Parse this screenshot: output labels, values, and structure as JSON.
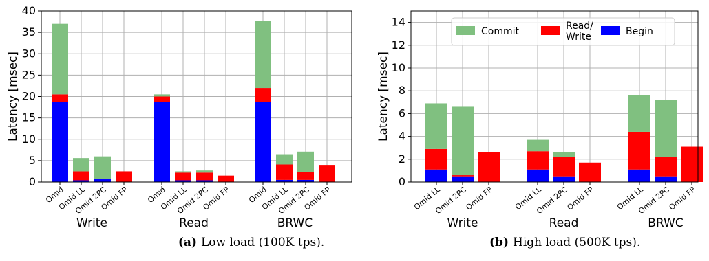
{
  "colors": {
    "begin": "#0000ff",
    "read_write": "#ff0000",
    "commit": "#80c080"
  },
  "legend": {
    "commit": "Commit",
    "read_write_line1": "Read/",
    "read_write_line2": "Write",
    "begin": "Begin"
  },
  "captions": {
    "a_label": "(a)",
    "a_text": "Low load (100K tps).",
    "b_label": "(b)",
    "b_text": "High load (500K tps)."
  },
  "chart_data": [
    {
      "type": "bar",
      "stacked": true,
      "ylabel": "Latency [msec]",
      "ylim": [
        0,
        40
      ],
      "yticks": [
        0,
        5,
        10,
        15,
        20,
        25,
        30,
        35,
        40
      ],
      "grid": true,
      "groups": [
        {
          "label": "Write",
          "bars": [
            {
              "label": "Omid",
              "begin": 18.7,
              "read_write": 1.8,
              "commit": 16.5
            },
            {
              "label": "Omid LL",
              "begin": 0.4,
              "read_write": 2.1,
              "commit": 3.1
            },
            {
              "label": "Omid 2PC",
              "begin": 0.7,
              "read_write": 0.1,
              "commit": 5.2
            },
            {
              "label": "Omid FP",
              "begin": 0,
              "read_write": 2.5,
              "commit": 0
            }
          ]
        },
        {
          "label": "Read",
          "bars": [
            {
              "label": "Omid",
              "begin": 18.7,
              "read_write": 1.3,
              "commit": 0.5
            },
            {
              "label": "Omid LL",
              "begin": 0.4,
              "read_write": 1.8,
              "commit": 0.3
            },
            {
              "label": "Omid 2PC",
              "begin": 0.4,
              "read_write": 1.8,
              "commit": 0.5
            },
            {
              "label": "Omid FP",
              "begin": 0,
              "read_write": 1.5,
              "commit": 0
            }
          ]
        },
        {
          "label": "BRWC",
          "bars": [
            {
              "label": "Omid",
              "begin": 18.7,
              "read_write": 3.3,
              "commit": 15.7
            },
            {
              "label": "Omid LL",
              "begin": 0.5,
              "read_write": 3.6,
              "commit": 2.4
            },
            {
              "label": "Omid 2PC",
              "begin": 0.5,
              "read_write": 1.9,
              "commit": 4.7
            },
            {
              "label": "Omid FP",
              "begin": 0,
              "read_write": 4.0,
              "commit": 0
            }
          ]
        }
      ]
    },
    {
      "type": "bar",
      "stacked": true,
      "ylabel": "Latency [msec]",
      "ylim": [
        0,
        15
      ],
      "yticks": [
        0,
        2,
        4,
        6,
        8,
        10,
        12,
        14
      ],
      "grid": true,
      "legend_position": "top",
      "groups": [
        {
          "label": "Write",
          "bars": [
            {
              "label": "Omid LL",
              "begin": 1.1,
              "read_write": 1.8,
              "commit": 4.0
            },
            {
              "label": "Omid 2PC",
              "begin": 0.5,
              "read_write": 0.1,
              "commit": 6.0
            },
            {
              "label": "Omid FP",
              "begin": 0,
              "read_write": 2.6,
              "commit": 0
            }
          ]
        },
        {
          "label": "Read",
          "bars": [
            {
              "label": "Omid LL",
              "begin": 1.1,
              "read_write": 1.6,
              "commit": 1.0
            },
            {
              "label": "Omid 2PC",
              "begin": 0.5,
              "read_write": 1.7,
              "commit": 0.4
            },
            {
              "label": "Omid FP",
              "begin": 0,
              "read_write": 1.7,
              "commit": 0
            }
          ]
        },
        {
          "label": "BRWC",
          "bars": [
            {
              "label": "Omid LL",
              "begin": 1.1,
              "read_write": 3.3,
              "commit": 3.2
            },
            {
              "label": "Omid 2PC",
              "begin": 0.5,
              "read_write": 1.7,
              "commit": 5.0
            },
            {
              "label": "Omid FP",
              "begin": 0,
              "read_write": 3.1,
              "commit": 0
            }
          ]
        }
      ]
    }
  ]
}
